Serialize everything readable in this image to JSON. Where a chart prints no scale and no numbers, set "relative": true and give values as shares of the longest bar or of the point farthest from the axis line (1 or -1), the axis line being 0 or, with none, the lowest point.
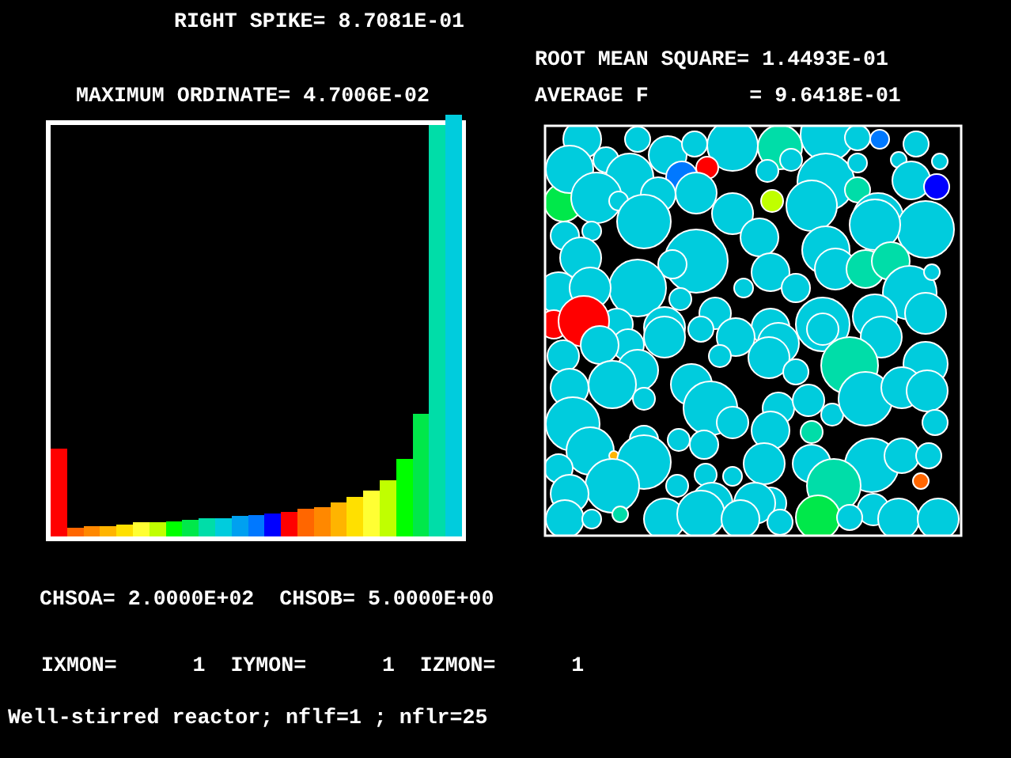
{
  "chart_data": {
    "type": "bar",
    "relative": true,
    "title": "MAXIMUM ORDINATE= 4.7006E-02",
    "categories": [
      null,
      null,
      null,
      null,
      null,
      null,
      null,
      null,
      null,
      null,
      null,
      null,
      null,
      null,
      null,
      null,
      null,
      null,
      null,
      null,
      null,
      null,
      null,
      null,
      null
    ],
    "values": [
      0.209,
      0.021,
      0.025,
      0.025,
      0.029,
      0.033,
      0.033,
      0.036,
      0.04,
      0.044,
      0.044,
      0.048,
      0.051,
      0.055,
      0.059,
      0.066,
      0.07,
      0.081,
      0.093,
      0.108,
      0.134,
      0.183,
      0.291,
      0.974,
      1
    ],
    "colors": [
      "#ff0000",
      "#ff6600",
      "#ff8800",
      "#ffb400",
      "#ffe000",
      "#ffff33",
      "#c0ff00",
      "#00ff00",
      "#00e84a",
      "#00dda8",
      "#00ccdd",
      "#00a0f0",
      "#0078ff",
      "#0000ff",
      "#ff0000",
      "#ff6600",
      "#ff8800",
      "#ffb400",
      "#ffe000",
      "#ffff33",
      "#c0ff00",
      "#00ff00",
      "#00e84a",
      "#00dda8",
      "#00ccdd"
    ],
    "annotations": [
      "RIGHT SPIKE= 8.7081E-01",
      "ROOT MEAN SQUARE= 1.4493E-01",
      "AVERAGE F        = 9.6418E-01",
      "CHSOA= 2.0000E+02  CHSOB= 5.0000E+00",
      "IXMON=      1  IYMON=      1  IZMON=      1",
      "Well-stirred reactor; nflf=1 ; nflr=25"
    ]
  }
}
